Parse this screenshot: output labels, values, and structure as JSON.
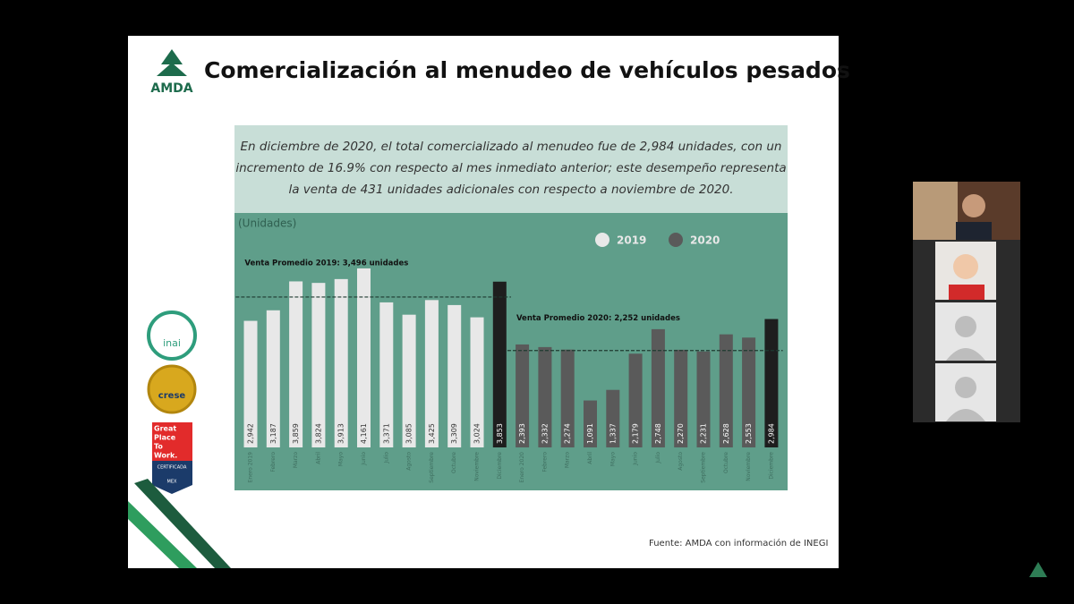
{
  "slide": {
    "title": "Comercialización al menudeo de vehículos pesados",
    "logo": "AMDA",
    "summary": [
      "En diciembre de 2020, el total comercializado al menudeo fue de 2,984 unidades, con un",
      "incremento de 16.9% con respecto al mes inmediato anterior; este desempeño representa",
      "la venta de 431 unidades adicionales con respecto a noviembre de 2020."
    ],
    "badges": [
      "inai",
      "crese"
    ],
    "gptw": [
      "Great",
      "Place",
      "To",
      "Work.",
      "CERTIFICADA",
      "MEX"
    ],
    "source": "Fuente: AMDA con información de INEGI"
  },
  "chart_data": {
    "type": "bar",
    "ylabel": "(Unidades)",
    "categories": [
      "Enero 2019",
      "Febrero",
      "Marzo",
      "Abril",
      "Mayo",
      "Junio",
      "Julio",
      "Agosto",
      "Septiembre",
      "Octubre",
      "Noviembre",
      "Diciembre",
      "Enero 2020",
      "Febrero",
      "Marzo",
      "Abril",
      "Mayo",
      "Junio",
      "Julio",
      "Agosto",
      "Septiembre",
      "Octubre",
      "Noviembre",
      "Diciembre"
    ],
    "series": [
      {
        "name": "2019",
        "color": "#e8e8e8",
        "values": [
          2942,
          3187,
          3859,
          3824,
          3913,
          4161,
          3371,
          3085,
          3425,
          3309,
          3024,
          3853,
          null,
          null,
          null,
          null,
          null,
          null,
          null,
          null,
          null,
          null,
          null,
          null
        ],
        "value_labels": [
          "2,942",
          "3,187",
          "3,859",
          "3,824",
          "3,913",
          "4,161",
          "3,371",
          "3,085",
          "3,425",
          "3,309",
          "3,024",
          "3,853",
          null,
          null,
          null,
          null,
          null,
          null,
          null,
          null,
          null,
          null,
          null,
          null
        ],
        "colors": [
          "#e8e8e8",
          "#e8e8e8",
          "#e8e8e8",
          "#e8e8e8",
          "#e8e8e8",
          "#e8e8e8",
          "#e8e8e8",
          "#e8e8e8",
          "#e8e8e8",
          "#e8e8e8",
          "#e8e8e8",
          "#1e1e1e",
          null,
          null,
          null,
          null,
          null,
          null,
          null,
          null,
          null,
          null,
          null,
          null
        ]
      },
      {
        "name": "2020",
        "color": "#5a5a5a",
        "values": [
          null,
          null,
          null,
          null,
          null,
          null,
          null,
          null,
          null,
          null,
          null,
          null,
          2393,
          2332,
          2274,
          1091,
          1337,
          2179,
          2748,
          2270,
          2231,
          2628,
          2553,
          2984
        ],
        "value_labels": [
          null,
          null,
          null,
          null,
          null,
          null,
          null,
          null,
          null,
          null,
          null,
          null,
          "2,393",
          "2,332",
          "2,274",
          "1,091",
          "1,337",
          "2,179",
          "2,748",
          "2,270",
          "2,231",
          "2,628",
          "2,553",
          "2,984"
        ],
        "colors": [
          null,
          null,
          null,
          null,
          null,
          null,
          null,
          null,
          null,
          null,
          null,
          null,
          "#5a5a5a",
          "#5a5a5a",
          "#5a5a5a",
          "#5a5a5a",
          "#5a5a5a",
          "#5a5a5a",
          "#5a5a5a",
          "#5a5a5a",
          "#5a5a5a",
          "#5a5a5a",
          "#5a5a5a",
          "#1e1e1e"
        ]
      }
    ],
    "reference_lines": [
      {
        "value": 3496,
        "label": "Venta Promedio 2019: 3,496 unidades"
      },
      {
        "value": 2252,
        "label": "Venta Promedio 2020: 2,252 unidades"
      }
    ],
    "ylim": [
      0,
      5200
    ],
    "grid": false,
    "legend": "top-right"
  }
}
